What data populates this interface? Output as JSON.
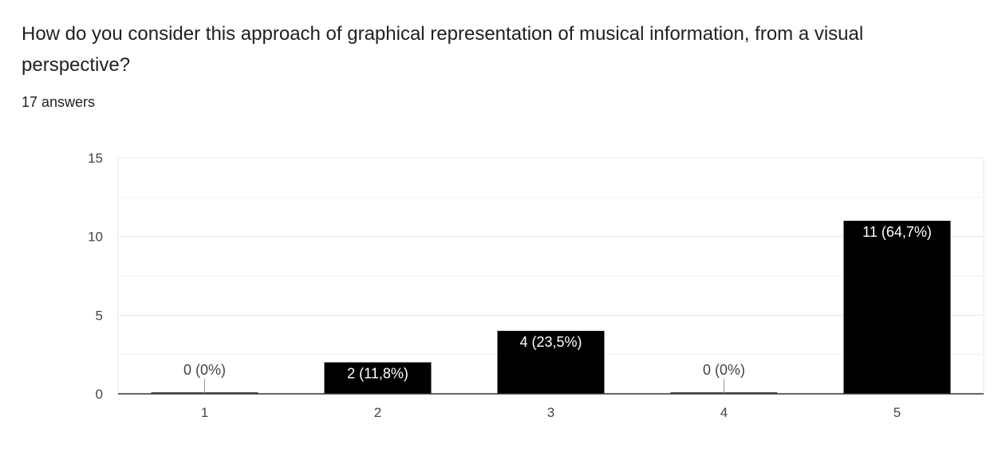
{
  "question": {
    "title": "How do you consider this approach of graphical representation of musical information, from a visual perspective?",
    "answers": "17 answers"
  },
  "colors": {
    "bar": "#000000",
    "gridline": "#e8e8e8",
    "axis": "#333333",
    "label_inside": "#ffffff",
    "label_outside": "#444444"
  },
  "chart_data": {
    "type": "bar",
    "categories": [
      "1",
      "2",
      "3",
      "4",
      "5"
    ],
    "values": [
      0,
      2,
      4,
      0,
      11
    ],
    "data_labels": [
      "0 (0%)",
      "2 (11,8%)",
      "4 (23,5%)",
      "0 (0%)",
      "11 (64,7%)"
    ],
    "title": "",
    "xlabel": "",
    "ylabel": "",
    "ylim": [
      0,
      15
    ],
    "yticks": [
      0,
      5,
      10,
      15
    ],
    "grid": true,
    "legend": "none"
  }
}
